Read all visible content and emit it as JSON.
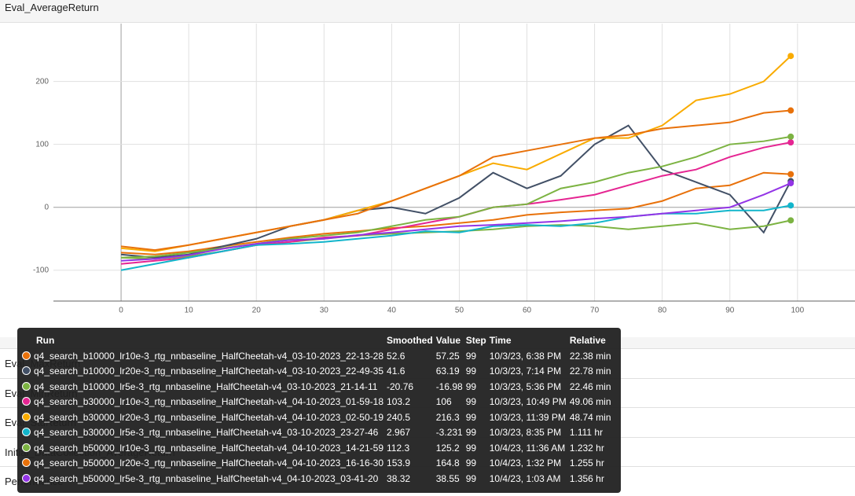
{
  "chart_data": {
    "type": "line",
    "title": "Eval_AverageReturn",
    "x": [
      0,
      5,
      10,
      15,
      20,
      25,
      30,
      35,
      40,
      45,
      50,
      55,
      60,
      65,
      70,
      75,
      80,
      85,
      90,
      95,
      99
    ],
    "xlim": [
      -10,
      108.5
    ],
    "xticks": [
      0,
      10,
      20,
      30,
      40,
      50,
      60,
      70,
      80,
      90,
      100
    ],
    "ylim": [
      -149,
      292
    ],
    "yticks": [
      -100,
      0,
      100,
      200
    ],
    "grid": true,
    "series": [
      {
        "name": "q4_search_b10000_lr10e-3_rtg_nnbaseline_HalfCheetah-v4_03-10-2023_22-13-28",
        "color": "#e8710a",
        "values": [
          -72,
          -75,
          -70,
          -62,
          -55,
          -48,
          -42,
          -38,
          -33,
          -30,
          -25,
          -20,
          -12,
          -8,
          -5,
          -2,
          10,
          30,
          35,
          55,
          52.6
        ]
      },
      {
        "name": "q4_search_b10000_lr20e-3_rtg_nnbaseline_HalfCheetah-v4_03-10-2023_22-49-35",
        "color": "#425066",
        "values": [
          -75,
          -80,
          -75,
          -62,
          -50,
          -30,
          -20,
          -5,
          0,
          -10,
          15,
          55,
          30,
          50,
          100,
          130,
          60,
          40,
          20,
          -40,
          41.6
        ]
      },
      {
        "name": "q4_search_b10000_lr5e-3_rtg_nnbaseline_HalfCheetah-v4_03-10-2023_21-14-11",
        "color": "#7cb342",
        "values": [
          -80,
          -82,
          -78,
          -70,
          -60,
          -55,
          -50,
          -45,
          -42,
          -40,
          -38,
          -35,
          -30,
          -28,
          -30,
          -35,
          -30,
          -25,
          -35,
          -30,
          -20.76
        ]
      },
      {
        "name": "q4_search_b30000_lr10e-3_rtg_nnbaseline_HalfCheetah-v4_04-10-2023_01-59-18",
        "color": "#e52592",
        "values": [
          -90,
          -85,
          -80,
          -70,
          -60,
          -55,
          -48,
          -45,
          -35,
          -25,
          -15,
          0,
          5,
          12,
          20,
          35,
          50,
          60,
          80,
          95,
          103.2
        ]
      },
      {
        "name": "q4_search_b30000_lr20e-3_rtg_nnbaseline_HalfCheetah-v4_04-10-2023_02-50-19",
        "color": "#f9ab00",
        "values": [
          -65,
          -70,
          -60,
          -50,
          -40,
          -30,
          -20,
          -5,
          10,
          30,
          50,
          70,
          60,
          85,
          110,
          110,
          130,
          170,
          180,
          200,
          240.5
        ]
      },
      {
        "name": "q4_search_b30000_lr5e-3_rtg_nnbaseline_HalfCheetah-v4_03-10-2023_23-27-46",
        "color": "#12b5cb",
        "values": [
          -100,
          -90,
          -80,
          -70,
          -60,
          -58,
          -55,
          -50,
          -45,
          -38,
          -40,
          -30,
          -28,
          -30,
          -25,
          -15,
          -10,
          -10,
          -5,
          -5,
          2.967
        ]
      },
      {
        "name": "q4_search_b50000_lr10e-3_rtg_nnbaseline_HalfCheetah-v4_04-10-2023_14-21-59",
        "color": "#7cb342",
        "values": [
          -80,
          -78,
          -72,
          -65,
          -58,
          -50,
          -45,
          -40,
          -30,
          -20,
          -15,
          0,
          5,
          30,
          40,
          55,
          65,
          80,
          100,
          105,
          112.3
        ]
      },
      {
        "name": "q4_search_b50000_lr20e-3_rtg_nnbaseline_HalfCheetah-v4_04-10-2023_16-16-30",
        "color": "#e8710a",
        "values": [
          -62,
          -68,
          -60,
          -50,
          -40,
          -30,
          -20,
          -10,
          10,
          30,
          50,
          80,
          90,
          100,
          110,
          115,
          125,
          130,
          135,
          150,
          153.9
        ]
      },
      {
        "name": "q4_search_b50000_lr5e-3_rtg_nnbaseline_HalfCheetah-v4_04-10-2023_03-41-20",
        "color": "#9334e6",
        "values": [
          -85,
          -82,
          -76,
          -66,
          -58,
          -52,
          -50,
          -44,
          -40,
          -35,
          -30,
          -28,
          -25,
          -22,
          -18,
          -15,
          -10,
          -5,
          0,
          20,
          38.32
        ]
      }
    ]
  },
  "background_sections": [
    "Eval_MaxReturn",
    "Eval_MinReturn",
    "Eval_StdReturn",
    "Initial_DataCollection_AverageReturn",
    "Performance"
  ],
  "tooltip": {
    "columns": [
      "Run",
      "Smoothed",
      "Value",
      "Step",
      "Time",
      "Relative"
    ],
    "rows": [
      [
        "q4_search_b10000_lr10e-3_rtg_nnbaseline_HalfCheetah-v4_03-10-2023_22-13-28",
        "52.6",
        "57.25",
        "99",
        "10/3/23, 6:38 PM",
        "22.38 min"
      ],
      [
        "q4_search_b10000_lr20e-3_rtg_nnbaseline_HalfCheetah-v4_03-10-2023_22-49-35",
        "41.6",
        "63.19",
        "99",
        "10/3/23, 7:14 PM",
        "22.78 min"
      ],
      [
        "q4_search_b10000_lr5e-3_rtg_nnbaseline_HalfCheetah-v4_03-10-2023_21-14-11",
        "-20.76",
        "-16.98",
        "99",
        "10/3/23, 5:36 PM",
        "22.46 min"
      ],
      [
        "q4_search_b30000_lr10e-3_rtg_nnbaseline_HalfCheetah-v4_04-10-2023_01-59-18",
        "103.2",
        "106",
        "99",
        "10/3/23, 10:49 PM",
        "49.06 min"
      ],
      [
        "q4_search_b30000_lr20e-3_rtg_nnbaseline_HalfCheetah-v4_04-10-2023_02-50-19",
        "240.5",
        "216.3",
        "99",
        "10/3/23, 11:39 PM",
        "48.74 min"
      ],
      [
        "q4_search_b30000_lr5e-3_rtg_nnbaseline_HalfCheetah-v4_03-10-2023_23-27-46",
        "2.967",
        "-3.231",
        "99",
        "10/3/23, 8:35 PM",
        "1.111 hr"
      ],
      [
        "q4_search_b50000_lr10e-3_rtg_nnbaseline_HalfCheetah-v4_04-10-2023_14-21-59",
        "112.3",
        "125.2",
        "99",
        "10/4/23, 11:36 AM",
        "1.232 hr"
      ],
      [
        "q4_search_b50000_lr20e-3_rtg_nnbaseline_HalfCheetah-v4_04-10-2023_16-16-30",
        "153.9",
        "164.8",
        "99",
        "10/4/23, 1:32 PM",
        "1.255 hr"
      ],
      [
        "q4_search_b50000_lr5e-3_rtg_nnbaseline_HalfCheetah-v4_04-10-2023_03-41-20",
        "38.32",
        "38.55",
        "99",
        "10/4/23, 1:03 AM",
        "1.356 hr"
      ]
    ]
  }
}
